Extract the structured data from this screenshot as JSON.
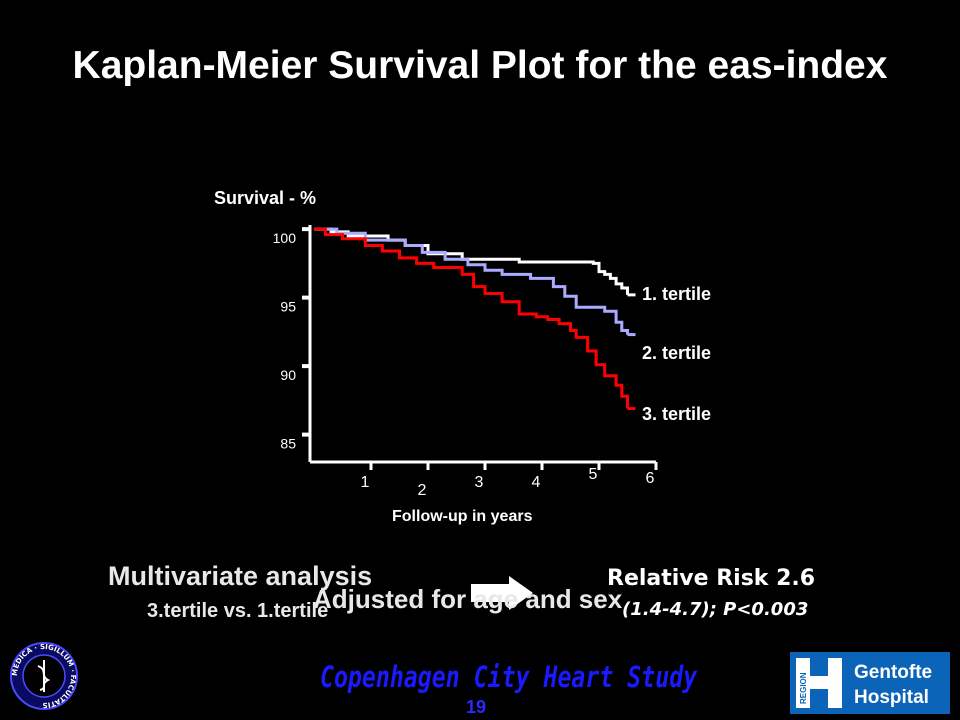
{
  "title": "Kaplan-Meier Survival Plot for the eas-index",
  "chart_data": {
    "type": "line",
    "step": true,
    "ylabel": "Survival - %",
    "xlabel": "Follow-up in years",
    "x_ticks": [
      "1",
      "2",
      "3",
      "4",
      "5",
      "6"
    ],
    "y_ticks": [
      "100",
      "95",
      "90",
      "85"
    ],
    "ylim": [
      83,
      100.3
    ],
    "xlim": [
      0,
      6
    ],
    "series": [
      {
        "name": "1. tertile",
        "color": "#ffffff",
        "x": [
          0,
          0.3,
          0.6,
          1.3,
          1.6,
          2.0,
          2.6,
          3.4,
          3.6,
          4.0,
          4.9,
          5.0,
          5.1,
          5.2,
          5.3,
          5.4,
          5.5
        ],
        "y": [
          100,
          99.8,
          99.5,
          99.2,
          98.8,
          98.2,
          97.8,
          97.8,
          97.6,
          97.6,
          97.5,
          96.9,
          96.7,
          96.4,
          96.0,
          95.7,
          95.2
        ]
      },
      {
        "name": "2. tertile",
        "color": "#aaaaff",
        "x": [
          0,
          0.4,
          0.9,
          1.6,
          1.9,
          2.3,
          2.7,
          3.0,
          3.3,
          3.8,
          4.2,
          4.4,
          4.6,
          5.1,
          5.3,
          5.4,
          5.5
        ],
        "y": [
          100,
          99.7,
          99.2,
          98.8,
          98.3,
          97.8,
          97.4,
          97.0,
          96.7,
          96.4,
          95.8,
          95.1,
          94.3,
          94.0,
          93.2,
          92.6,
          92.3
        ]
      },
      {
        "name": "3. tertile",
        "color": "#ff0000",
        "x": [
          0,
          0.2,
          0.5,
          0.9,
          1.2,
          1.5,
          1.8,
          2.1,
          2.6,
          2.8,
          3.0,
          3.3,
          3.6,
          3.9,
          4.1,
          4.3,
          4.5,
          4.6,
          4.8,
          4.95,
          5.1,
          5.3,
          5.4,
          5.5
        ],
        "y": [
          100,
          99.6,
          99.3,
          98.8,
          98.4,
          97.9,
          97.5,
          97.2,
          96.7,
          95.8,
          95.3,
          94.7,
          93.8,
          93.6,
          93.4,
          93.1,
          92.6,
          92.1,
          91.1,
          90.1,
          89.3,
          88.6,
          87.8,
          86.9
        ]
      }
    ]
  },
  "multivariate": {
    "title": "Multivariate analysis",
    "subtitle": "3.tertile vs. 1.tertile",
    "adjusted": "Adjusted for age and sex",
    "rr": "Relative Risk 2.6",
    "ci": "(1.4-4.7); P<0.003"
  },
  "footer": {
    "study": "Copenhagen City Heart Study",
    "page": "19",
    "seal_text": "MEDICA · SIGILLUM · FACULTATIS",
    "logo_region": "REGION",
    "logo_line1": "Gentofte",
    "logo_line2": "Hospital"
  }
}
